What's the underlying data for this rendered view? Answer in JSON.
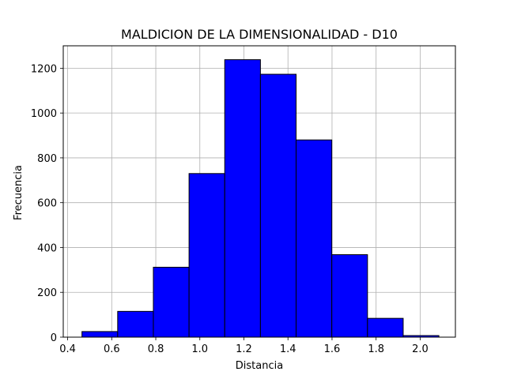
{
  "chart_data": {
    "type": "bar",
    "title": "MALDICION DE LA DIMENSIONALIDAD - D10",
    "xlabel": "Distancia",
    "ylabel": "Frecuencia",
    "xlim": [
      0.38,
      2.16
    ],
    "ylim": [
      0,
      1300
    ],
    "grid": true,
    "bar_color": "#0000ff",
    "edge_color": "#000000",
    "x_ticks": [
      "0.4",
      "0.6",
      "0.8",
      "1.0",
      "1.2",
      "1.4",
      "1.6",
      "1.8",
      "2.0"
    ],
    "y_ticks": [
      "0",
      "200",
      "400",
      "600",
      "800",
      "1000",
      "1200"
    ],
    "bins": [
      {
        "x0": 0.465,
        "x1": 0.627,
        "count": 25
      },
      {
        "x0": 0.627,
        "x1": 0.789,
        "count": 115
      },
      {
        "x0": 0.789,
        "x1": 0.951,
        "count": 312
      },
      {
        "x0": 0.951,
        "x1": 1.113,
        "count": 730
      },
      {
        "x0": 1.113,
        "x1": 1.275,
        "count": 1238
      },
      {
        "x0": 1.275,
        "x1": 1.437,
        "count": 1173
      },
      {
        "x0": 1.437,
        "x1": 1.599,
        "count": 880
      },
      {
        "x0": 1.599,
        "x1": 1.761,
        "count": 368
      },
      {
        "x0": 1.761,
        "x1": 1.923,
        "count": 84
      },
      {
        "x0": 1.923,
        "x1": 2.085,
        "count": 7
      }
    ]
  }
}
